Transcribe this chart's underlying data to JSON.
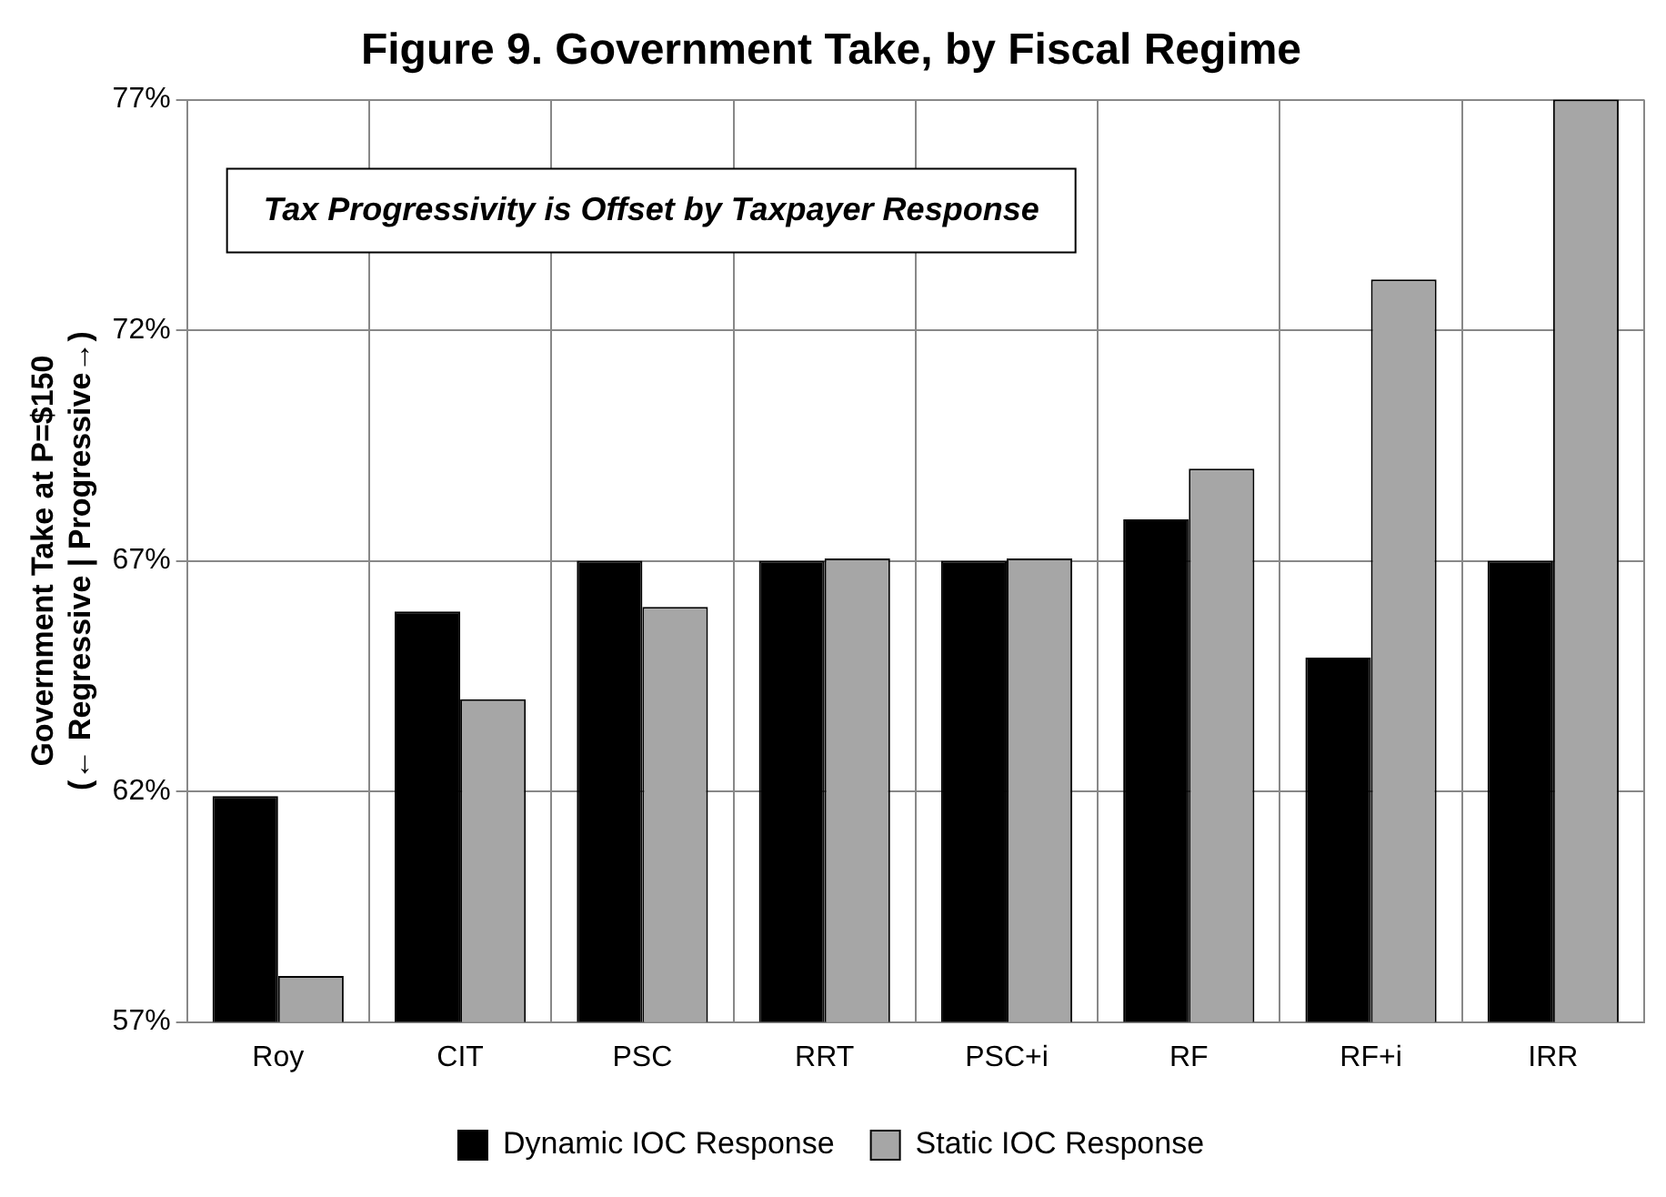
{
  "chart_data": {
    "type": "bar",
    "title": "Figure 9. Government Take, by Fiscal Regime",
    "ylabel": "Government Take at P=$150\n(← Regressive | Progressive→)",
    "categories": [
      "Roy",
      "CIT",
      "PSC",
      "RRT",
      "PSC+i",
      "RF",
      "RF+i",
      "IRR"
    ],
    "series": [
      {
        "name": "Dynamic IOC Response",
        "color": "#000000",
        "values": [
          61.9,
          65.9,
          67.0,
          67.0,
          67.0,
          67.9,
          64.9,
          67.0
        ]
      },
      {
        "name": "Static IOC Response",
        "color": "#a6a6a6",
        "values": [
          58.0,
          64.0,
          66.0,
          67.05,
          67.05,
          69.0,
          73.1,
          77.0
        ]
      }
    ],
    "ylim": [
      57,
      77
    ],
    "yticks": [
      {
        "value": 57,
        "label": "57%"
      },
      {
        "value": 62,
        "label": "62%"
      },
      {
        "value": 67,
        "label": "67%"
      },
      {
        "value": 72,
        "label": "72%"
      },
      {
        "value": 77,
        "label": "77%"
      }
    ],
    "annotations": [
      "Tax Progressivity is Offset by Taxpayer Response"
    ],
    "grid": true,
    "legend": "bottom"
  }
}
